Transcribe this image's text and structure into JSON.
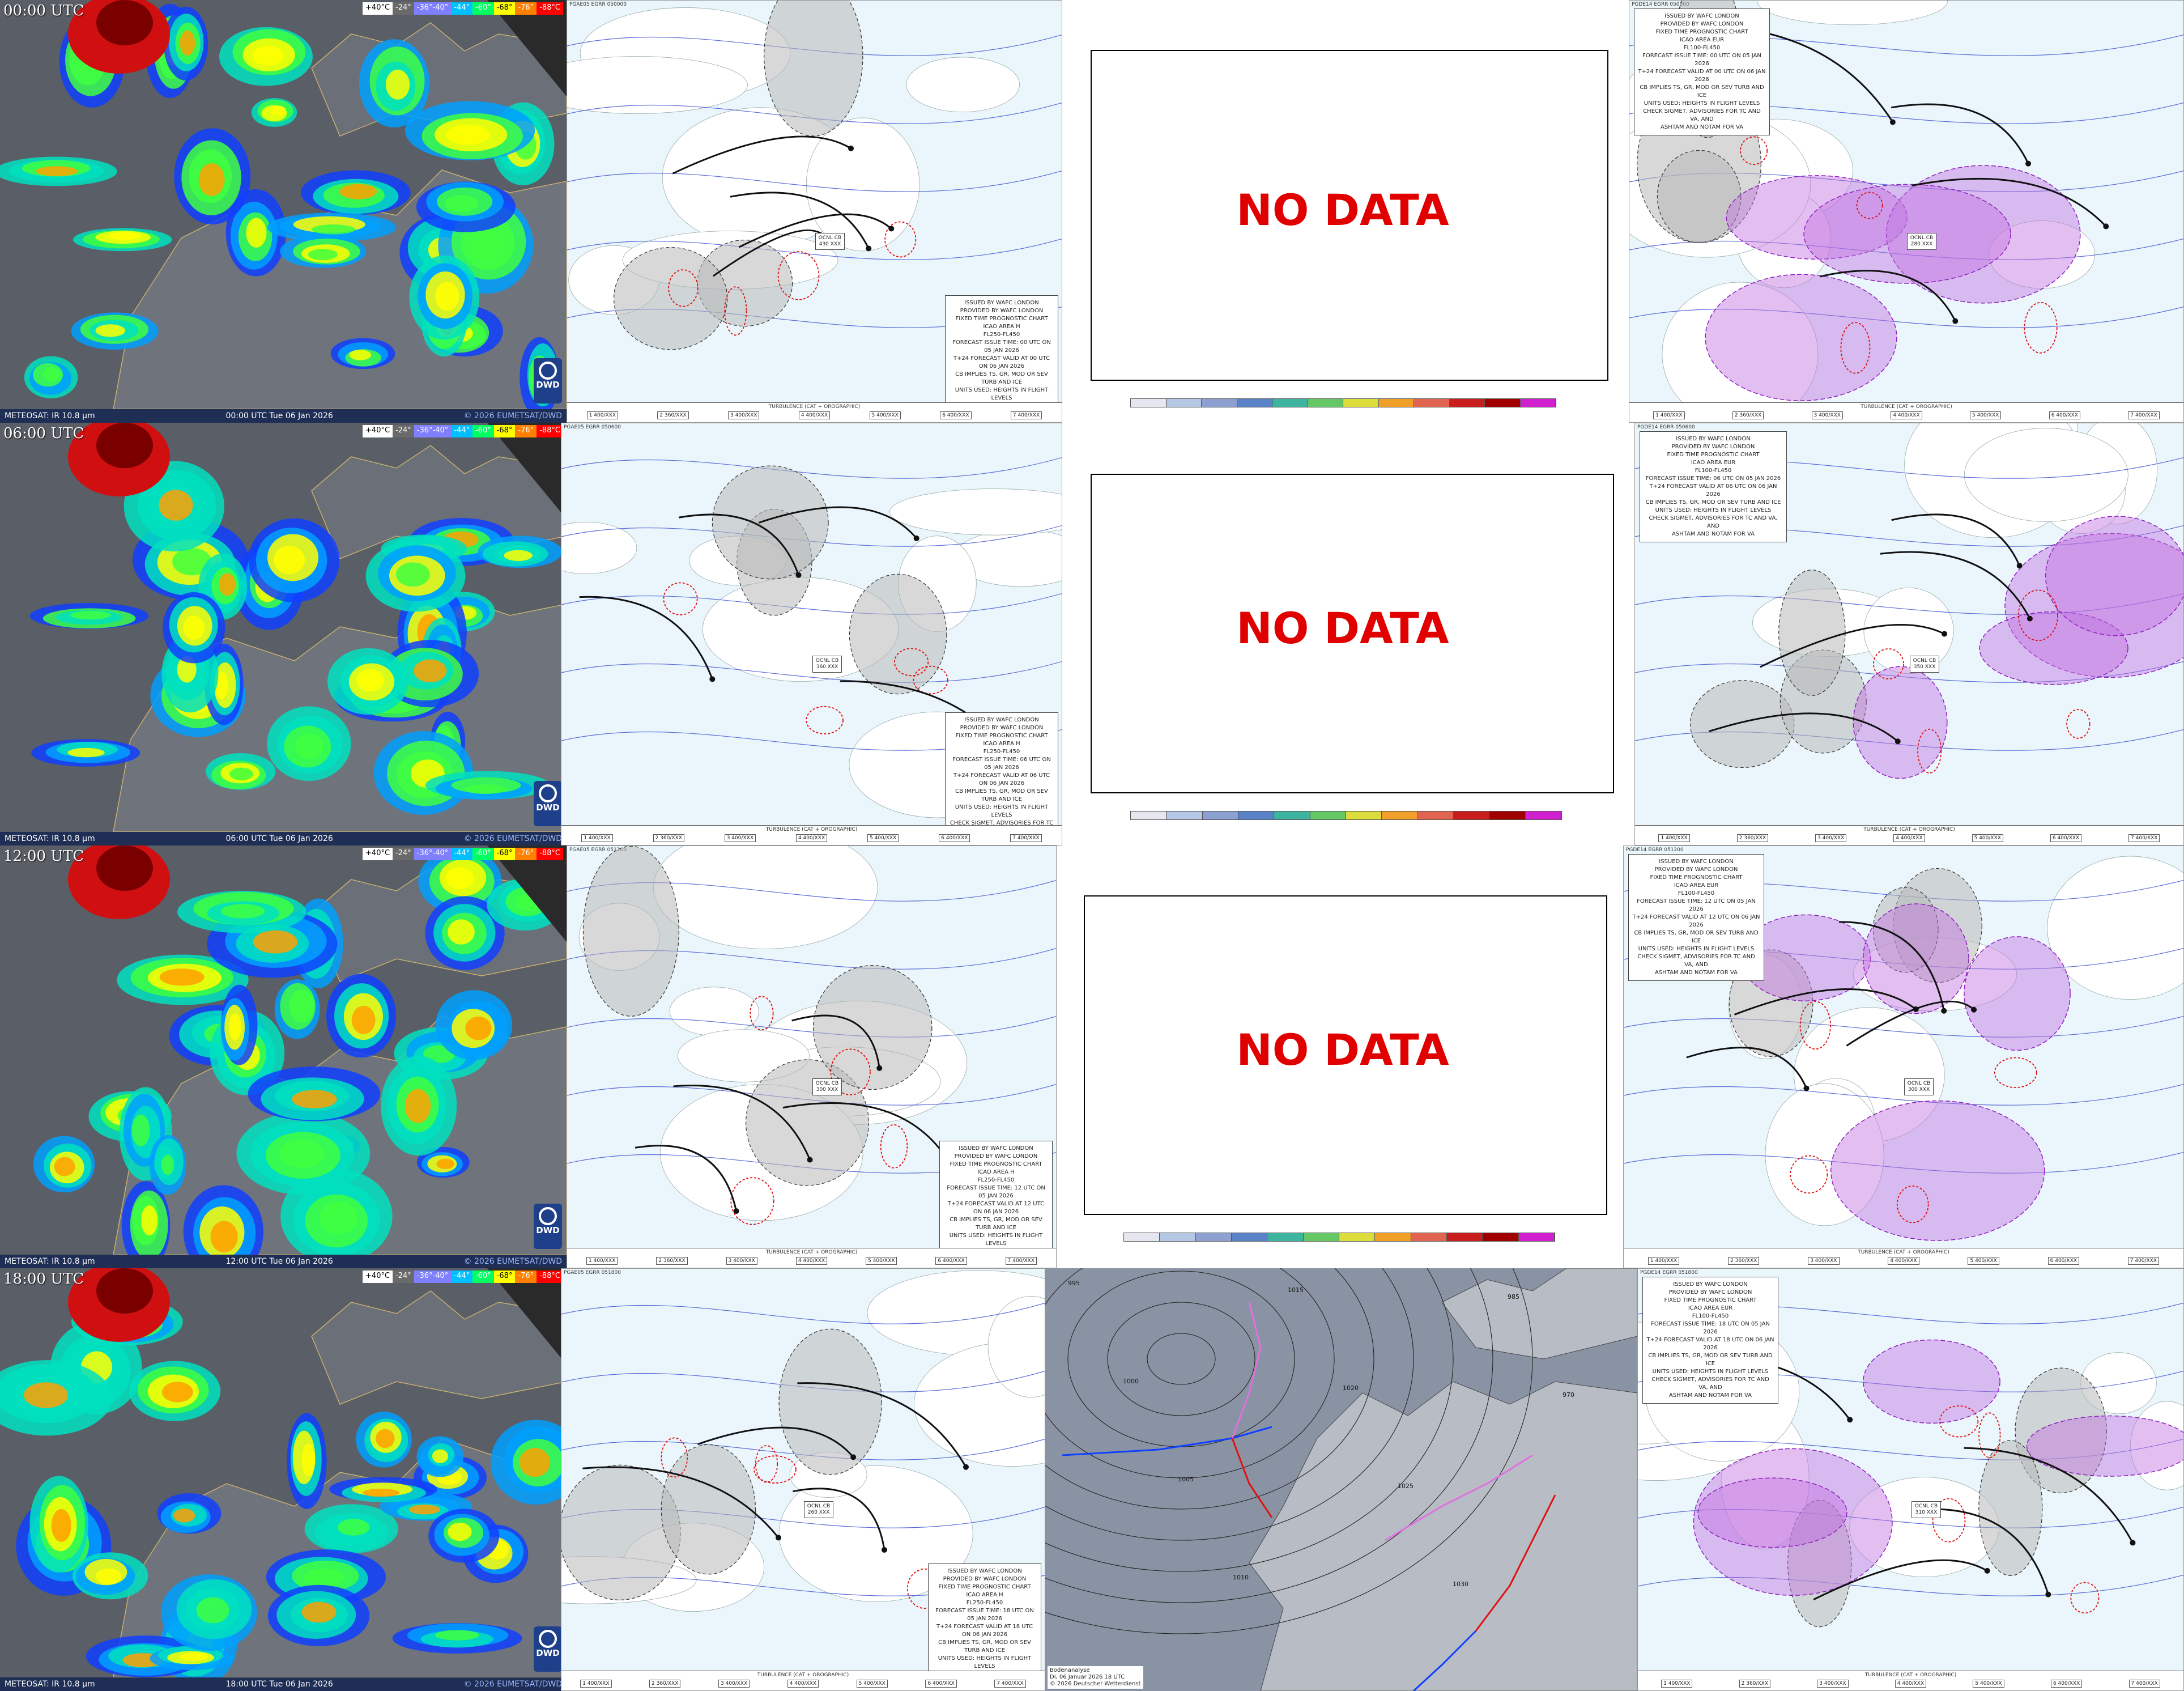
{
  "satellite": {
    "footer_left": "METEOSAT: IR 10.8 µm",
    "credit": "© 2026 EUMETSAT/DWD",
    "logo_text": "DWD",
    "scale_labels": [
      "+40°C",
      "-24°",
      "-36°-40°",
      "-44°",
      "-60°",
      "-68°",
      "-76°",
      "-88°C"
    ],
    "frames": [
      {
        "time": "00:00 UTC",
        "footer_time": "00:00 UTC Tue 06 Jan 2026"
      },
      {
        "time": "06:00 UTC",
        "footer_time": "06:00 UTC Tue 06 Jan 2026"
      },
      {
        "time": "12:00 UTC",
        "footer_time": "12:00 UTC Tue 06 Jan 2026"
      },
      {
        "time": "18:00 UTC",
        "footer_time": "18:00 UTC Tue 06 Jan 2026"
      }
    ]
  },
  "sigwx_h": {
    "headers": [
      "PGAE05 EGRR 050000",
      "PGAE05 EGRR 050600",
      "PGAE05 EGRR 051200",
      "PGAE05 EGRR 051800"
    ],
    "info_lines": [
      [
        "ISSUED BY WAFC LONDON",
        "PROVIDED BY WAFC LONDON",
        "FIXED TIME PROGNOSTIC CHART",
        "ICAO AREA H",
        "FL250-FL450",
        "FORECAST ISSUE TIME: 00 UTC ON 05 JAN 2026",
        "T+24 FORECAST VALID AT 00 UTC ON 06 JAN 2026",
        "CB IMPLIES TS, GR, MOD OR SEV TURB AND ICE",
        "UNITS USED: HEIGHTS IN FLIGHT LEVELS",
        "CHECK SIGMET, ADVISORIES FOR TC AND VA, AND",
        "ASHTAM AND NOTAM FOR VA"
      ],
      [
        "ISSUED BY WAFC LONDON",
        "PROVIDED BY WAFC LONDON",
        "FIXED TIME PROGNOSTIC CHART",
        "ICAO AREA H",
        "FL250-FL450",
        "FORECAST ISSUE TIME: 06 UTC ON 05 JAN 2026",
        "T+24 FORECAST VALID AT 06 UTC ON 06 JAN 2026",
        "CB IMPLIES TS, GR, MOD OR SEV TURB AND ICE",
        "UNITS USED: HEIGHTS IN FLIGHT LEVELS",
        "CHECK SIGMET, ADVISORIES FOR TC AND VA, AND",
        "ASHTAM AND NOTAM FOR VA"
      ],
      [
        "ISSUED BY WAFC LONDON",
        "PROVIDED BY WAFC LONDON",
        "FIXED TIME PROGNOSTIC CHART",
        "ICAO AREA H",
        "FL250-FL450",
        "FORECAST ISSUE TIME: 12 UTC ON 05 JAN 2026",
        "T+24 FORECAST VALID AT 12 UTC ON 06 JAN 2026",
        "CB IMPLIES TS, GR, MOD OR SEV TURB AND ICE",
        "UNITS USED: HEIGHTS IN FLIGHT LEVELS",
        "CHECK SIGMET, ADVISORIES FOR TC AND VA, AND",
        "ASHTAM AND NOTAM FOR VA"
      ],
      [
        "ISSUED BY WAFC LONDON",
        "PROVIDED BY WAFC LONDON",
        "FIXED TIME PROGNOSTIC CHART",
        "ICAO AREA H",
        "FL250-FL450",
        "FORECAST ISSUE TIME: 18 UTC ON 05 JAN 2026",
        "T+24 FORECAST VALID AT 18 UTC ON 06 JAN 2026",
        "CB IMPLIES TS, GR, MOD OR SEV TURB AND ICE",
        "UNITS USED: HEIGHTS IN FLIGHT LEVELS",
        "CHECK SIGMET, ADVISORIES FOR TC AND VA, AND",
        "ASHTAM AND NOTAM FOR VA"
      ]
    ],
    "turbulence_label": "TURBULENCE (CAT + OROGRAPHIC)",
    "cb_labels": [
      "OCNL CB 430 XXX",
      "OCNL CB 360 XXX",
      "OCNL CB 300 XXX",
      "OCNL CB 260 XXX"
    ]
  },
  "nodata": {
    "text": "NO DATA",
    "colorbar_colors": [
      "#e6e6f0",
      "#b4c8e6",
      "#8ca0d2",
      "#5a82c8",
      "#3cb4a0",
      "#64c864",
      "#dcdc3c",
      "#f0a028",
      "#e06450",
      "#c81e1e",
      "#a00000",
      "#d020d0"
    ]
  },
  "surface": {
    "caption_line1": "Bodenanalyse",
    "caption_line2": "Di, 06 Januar 2026 18 UTC",
    "caption_line3": "© 2026 Deutscher Wetterdienst",
    "isobar_labels": [
      "995",
      "1000",
      "1005",
      "1010",
      "1015",
      "1020",
      "1025",
      "1030",
      "985",
      "970"
    ]
  },
  "sigwx_eur": {
    "headers": [
      "PGDE14 EGRR 050000",
      "PGDE14 EGRR 050600",
      "PGDE14 EGRR 051200",
      "PGDE14 EGRR 051800"
    ],
    "info_lines": [
      [
        "ISSUED BY WAFC LONDON",
        "PROVIDED BY WAFC LONDON",
        "FIXED TIME PROGNOSTIC CHART",
        "ICAO AREA EUR",
        "FL100-FL450",
        "FORECAST ISSUE TIME: 00 UTC ON 05 JAN 2026",
        "T+24 FORECAST VALID AT 00 UTC ON 06 JAN 2026",
        "CB IMPLIES TS, GR, MOD OR SEV TURB AND ICE",
        "UNITS USED: HEIGHTS IN FLIGHT LEVELS",
        "CHECK SIGMET, ADVISORIES FOR TC AND VA, AND",
        "ASHTAM AND NOTAM FOR VA"
      ],
      [
        "ISSUED BY WAFC LONDON",
        "PROVIDED BY WAFC LONDON",
        "FIXED TIME PROGNOSTIC CHART",
        "ICAO AREA EUR",
        "FL100-FL450",
        "FORECAST ISSUE TIME: 06 UTC ON 05 JAN 2026",
        "T+24 FORECAST VALID AT 06 UTC ON 06 JAN 2026",
        "CB IMPLIES TS, GR, MOD OR SEV TURB AND ICE",
        "UNITS USED: HEIGHTS IN FLIGHT LEVELS",
        "CHECK SIGMET, ADVISORIES FOR TC AND VA, AND",
        "ASHTAM AND NOTAM FOR VA"
      ],
      [
        "ISSUED BY WAFC LONDON",
        "PROVIDED BY WAFC LONDON",
        "FIXED TIME PROGNOSTIC CHART",
        "ICAO AREA EUR",
        "FL100-FL450",
        "FORECAST ISSUE TIME: 12 UTC ON 05 JAN 2026",
        "T+24 FORECAST VALID AT 12 UTC ON 06 JAN 2026",
        "CB IMPLIES TS, GR, MOD OR SEV TURB AND ICE",
        "UNITS USED: HEIGHTS IN FLIGHT LEVELS",
        "CHECK SIGMET, ADVISORIES FOR TC AND VA, AND",
        "ASHTAM AND NOTAM FOR VA"
      ],
      [
        "ISSUED BY WAFC LONDON",
        "PROVIDED BY WAFC LONDON",
        "FIXED TIME PROGNOSTIC CHART",
        "ICAO AREA EUR",
        "FL100-FL450",
        "FORECAST ISSUE TIME: 18 UTC ON 05 JAN 2026",
        "T+24 FORECAST VALID AT 18 UTC ON 06 JAN 2026",
        "CB IMPLIES TS, GR, MOD OR SEV TURB AND ICE",
        "UNITS USED: HEIGHTS IN FLIGHT LEVELS",
        "CHECK SIGMET, ADVISORIES FOR TC AND VA, AND",
        "ASHTAM AND NOTAM FOR VA"
      ]
    ],
    "turbulence_label": "TURBULENCE (CAT + OROGRAPHIC)",
    "cb_labels": [
      "OCNL CB 280 XXX",
      "OCNL CB 350 XXX",
      "OCNL CB 300 XXX",
      "OCNL CB 310 XXX"
    ],
    "fl_labels": [
      "FL400",
      "FL450",
      "FL300",
      "FL350"
    ]
  },
  "legend_items": [
    "1 400/XXX",
    "2 360/XXX",
    "3 400/XXX",
    "4 400/XXX",
    "5 400/XXX",
    "6 400/XXX",
    "7 400/XXX"
  ]
}
